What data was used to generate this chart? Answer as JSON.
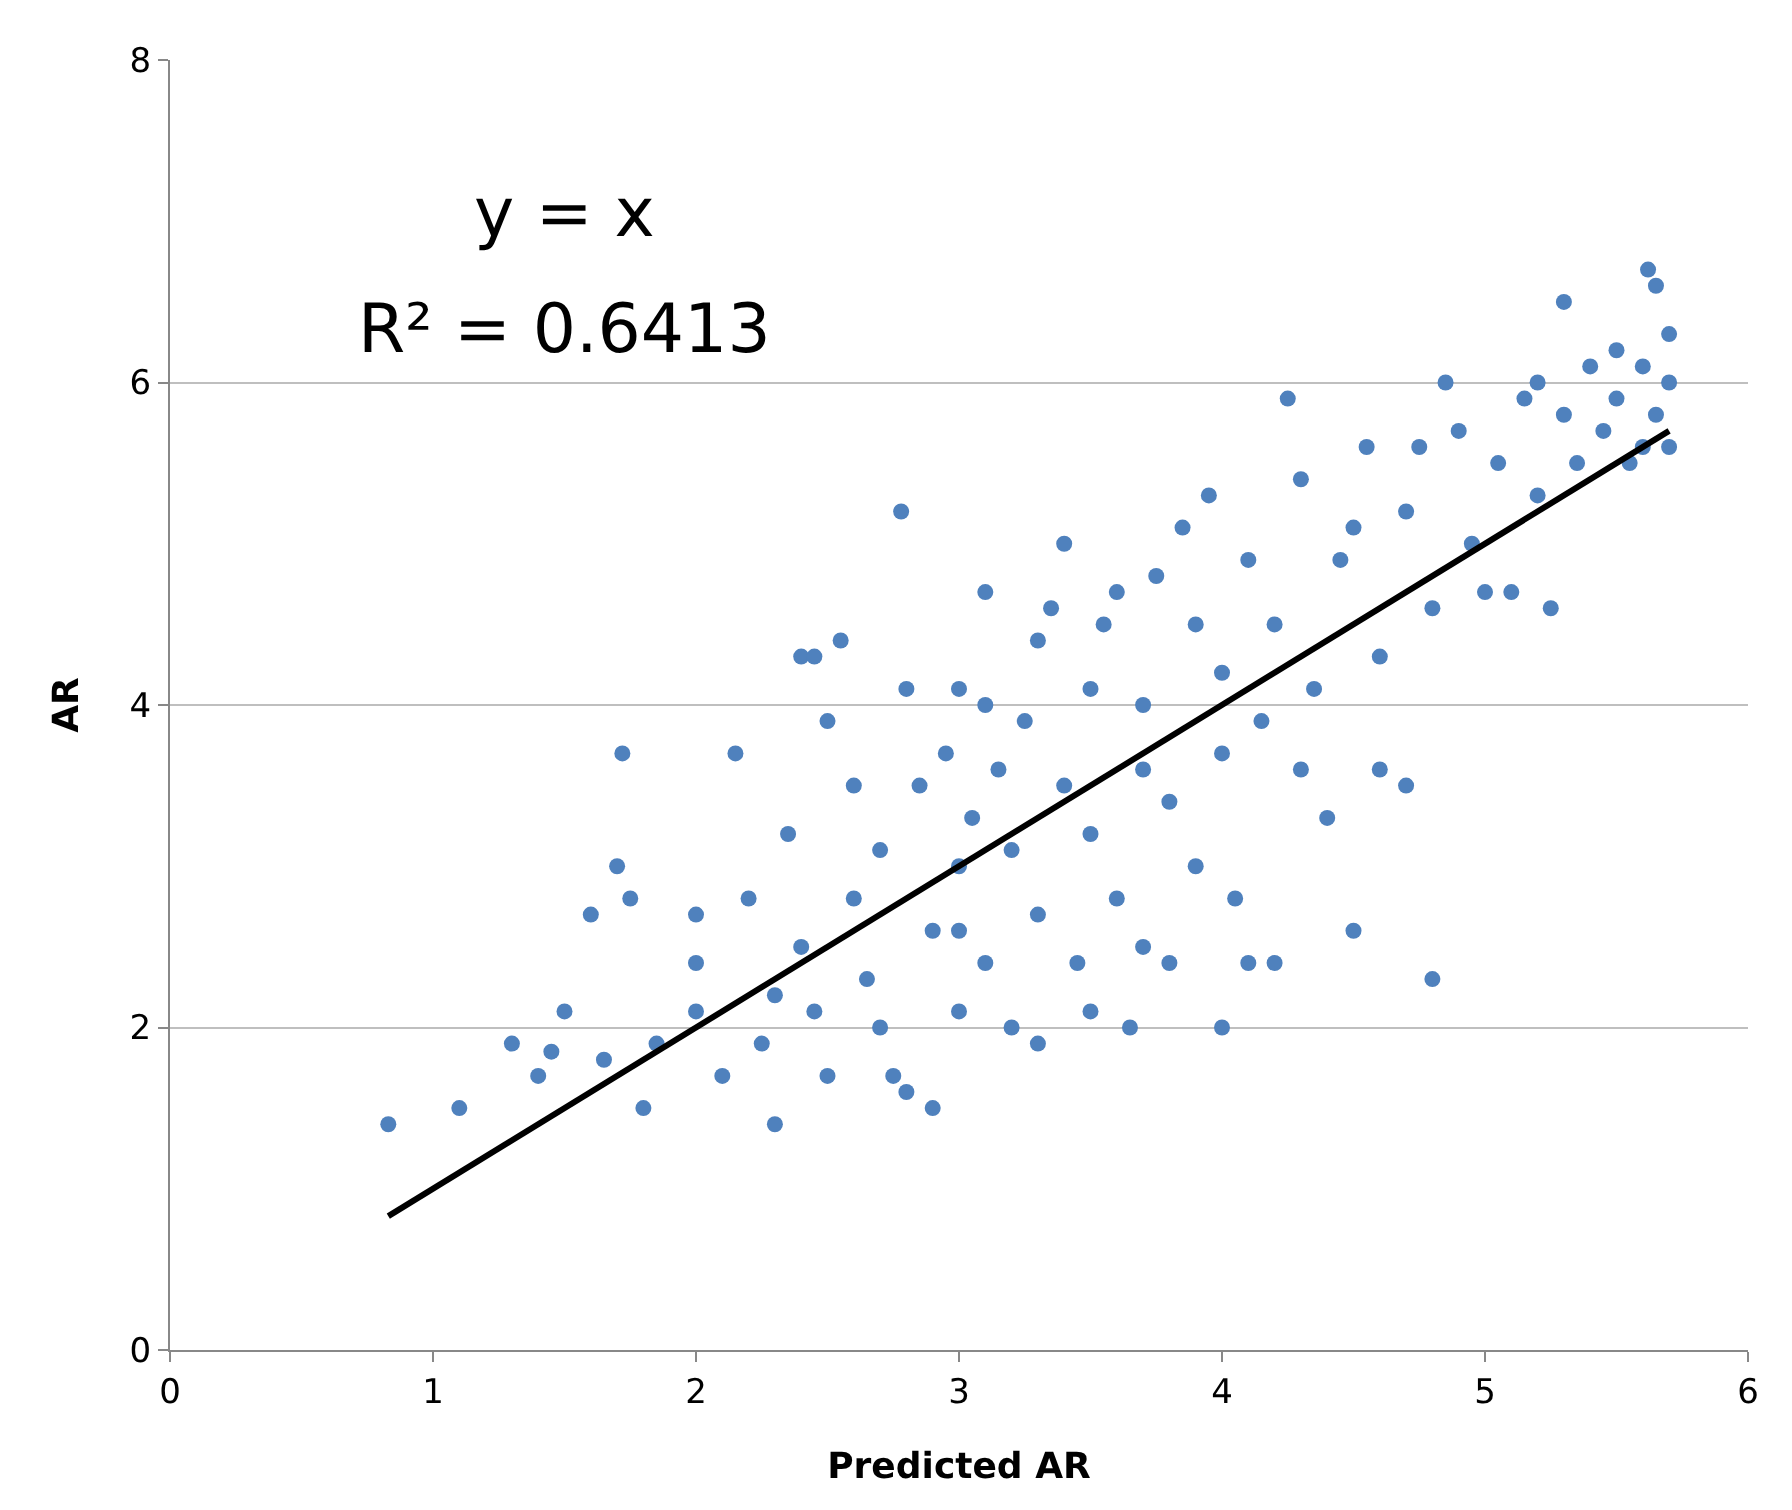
{
  "chart_data": {
    "type": "scatter",
    "xlabel": "Predicted AR",
    "ylabel": "AR",
    "annotations": [
      "y = x",
      "R² = 0.6413"
    ],
    "xlim": [
      0,
      6
    ],
    "xticks": [
      0,
      1,
      2,
      3,
      4,
      5,
      6
    ],
    "ylim": [
      0,
      8
    ],
    "yticks": [
      0,
      2,
      4,
      6,
      8
    ],
    "grid": "y",
    "legend": false,
    "marker": "circle",
    "series": [
      {
        "color": "#4f81bd",
        "x": [
          0.83,
          1.1,
          1.3,
          1.4,
          1.45,
          1.5,
          1.6,
          1.65,
          1.7,
          1.72,
          1.75,
          1.8,
          1.85,
          2.0,
          2.0,
          2.0,
          2.1,
          2.15,
          2.2,
          2.25,
          2.3,
          2.3,
          2.35,
          2.4,
          2.45,
          2.4,
          2.45,
          2.5,
          2.55,
          2.5,
          2.6,
          2.6,
          2.65,
          2.7,
          2.7,
          2.75,
          2.78,
          2.8,
          2.8,
          2.85,
          2.9,
          2.9,
          2.95,
          3.0,
          3.0,
          3.0,
          3.0,
          3.05,
          3.1,
          3.1,
          3.1,
          3.15,
          3.2,
          3.2,
          3.25,
          3.3,
          3.3,
          3.3,
          3.35,
          3.4,
          3.4,
          3.45,
          3.5,
          3.5,
          3.5,
          3.55,
          3.6,
          3.6,
          3.65,
          3.7,
          3.7,
          3.7,
          3.75,
          3.8,
          3.8,
          3.85,
          3.9,
          3.9,
          3.95,
          4.0,
          4.0,
          4.0,
          4.05,
          4.1,
          4.1,
          4.15,
          4.2,
          4.2,
          4.25,
          4.3,
          4.3,
          4.35,
          4.4,
          4.45,
          4.5,
          4.5,
          4.55,
          4.6,
          4.6,
          4.7,
          4.7,
          4.75,
          4.8,
          4.8,
          4.85,
          4.9,
          4.95,
          5.0,
          5.05,
          5.1,
          5.15,
          5.2,
          5.2,
          5.25,
          5.3,
          5.3,
          5.35,
          5.4,
          5.45,
          5.5,
          5.5,
          5.55,
          5.6,
          5.62,
          5.65,
          5.65,
          5.7,
          5.7,
          5.7,
          5.6
        ],
        "values": [
          1.4,
          1.5,
          1.9,
          1.7,
          1.85,
          2.1,
          2.7,
          1.8,
          3.0,
          3.7,
          2.8,
          1.5,
          1.9,
          2.7,
          2.1,
          2.4,
          1.7,
          3.7,
          2.8,
          1.9,
          1.4,
          2.2,
          3.2,
          4.3,
          4.3,
          2.5,
          2.1,
          1.7,
          4.4,
          3.9,
          3.5,
          2.8,
          2.3,
          3.1,
          2.0,
          1.7,
          5.2,
          4.1,
          1.6,
          3.5,
          2.6,
          1.5,
          3.7,
          4.1,
          3.0,
          2.6,
          2.1,
          3.3,
          4.7,
          4.0,
          2.4,
          3.6,
          2.0,
          3.1,
          3.9,
          4.4,
          2.7,
          1.9,
          4.6,
          3.5,
          5.0,
          2.4,
          3.2,
          4.1,
          2.1,
          4.5,
          2.8,
          4.7,
          2.0,
          3.6,
          4.0,
          2.5,
          4.8,
          3.4,
          2.4,
          5.1,
          4.5,
          3.0,
          5.3,
          4.2,
          3.7,
          2.0,
          2.8,
          4.9,
          2.4,
          3.9,
          4.5,
          2.4,
          5.9,
          3.6,
          5.4,
          4.1,
          3.3,
          4.9,
          2.6,
          5.1,
          5.6,
          4.3,
          3.6,
          5.2,
          3.5,
          5.6,
          2.3,
          4.6,
          6.0,
          5.7,
          5.0,
          4.7,
          5.5,
          4.7,
          5.9,
          6.0,
          5.3,
          4.6,
          6.5,
          5.8,
          5.5,
          6.1,
          5.7,
          6.2,
          5.9,
          5.5,
          6.1,
          6.7,
          6.6,
          5.8,
          6.3,
          6.0,
          5.6,
          5.6
        ]
      },
      {
        "type": "line",
        "marker": "none",
        "color": "#000000",
        "x": [
          0.83,
          5.7
        ],
        "values": [
          0.83,
          5.7
        ]
      }
    ]
  }
}
